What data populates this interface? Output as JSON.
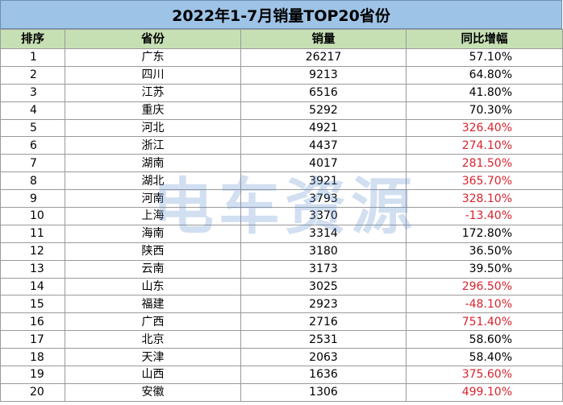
{
  "title": "2022年1-7月销量TOP20省份",
  "headers": {
    "rank": "排序",
    "province": "省份",
    "sales": "销量",
    "growth": "同比增幅"
  },
  "watermark": "电车资源",
  "highlight_color": "#d9232d",
  "rows": [
    {
      "rank": "1",
      "province": "广东",
      "sales": "26217",
      "growth": "57.10%",
      "red": false
    },
    {
      "rank": "2",
      "province": "四川",
      "sales": "9213",
      "growth": "64.80%",
      "red": false
    },
    {
      "rank": "3",
      "province": "江苏",
      "sales": "6516",
      "growth": "41.80%",
      "red": false
    },
    {
      "rank": "4",
      "province": "重庆",
      "sales": "5292",
      "growth": "70.30%",
      "red": false
    },
    {
      "rank": "5",
      "province": "河北",
      "sales": "4921",
      "growth": "326.40%",
      "red": true
    },
    {
      "rank": "6",
      "province": "浙江",
      "sales": "4437",
      "growth": "274.10%",
      "red": true
    },
    {
      "rank": "7",
      "province": "湖南",
      "sales": "4017",
      "growth": "281.50%",
      "red": true
    },
    {
      "rank": "8",
      "province": "湖北",
      "sales": "3921",
      "growth": "365.70%",
      "red": true
    },
    {
      "rank": "9",
      "province": "河南",
      "sales": "3793",
      "growth": "328.10%",
      "red": true
    },
    {
      "rank": "10",
      "province": "上海",
      "sales": "3370",
      "growth": "-13.40%",
      "red": true
    },
    {
      "rank": "11",
      "province": "海南",
      "sales": "3314",
      "growth": "172.80%",
      "red": false
    },
    {
      "rank": "12",
      "province": "陕西",
      "sales": "3180",
      "growth": "36.50%",
      "red": false
    },
    {
      "rank": "13",
      "province": "云南",
      "sales": "3173",
      "growth": "39.50%",
      "red": false
    },
    {
      "rank": "14",
      "province": "山东",
      "sales": "3025",
      "growth": "296.50%",
      "red": true
    },
    {
      "rank": "15",
      "province": "福建",
      "sales": "2923",
      "growth": "-48.10%",
      "red": true
    },
    {
      "rank": "16",
      "province": "广西",
      "sales": "2716",
      "growth": "751.40%",
      "red": true
    },
    {
      "rank": "17",
      "province": "北京",
      "sales": "2531",
      "growth": "58.60%",
      "red": false
    },
    {
      "rank": "18",
      "province": "天津",
      "sales": "2063",
      "growth": "58.40%",
      "red": false
    },
    {
      "rank": "19",
      "province": "山西",
      "sales": "1636",
      "growth": "375.60%",
      "red": true
    },
    {
      "rank": "20",
      "province": "安徽",
      "sales": "1306",
      "growth": "499.10%",
      "red": true
    }
  ]
}
